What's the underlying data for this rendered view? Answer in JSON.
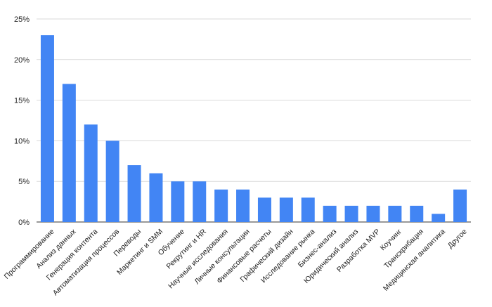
{
  "chart_data": {
    "type": "bar",
    "title": "",
    "xlabel": "",
    "ylabel": "",
    "ylim": [
      0,
      25
    ],
    "yticks": [
      "0%",
      "5%",
      "10%",
      "15%",
      "20%",
      "25%"
    ],
    "ytick_values": [
      0,
      5,
      10,
      15,
      20,
      25
    ],
    "grid": true,
    "legend": "none",
    "bar_color": "#4285F4",
    "categories": [
      "Программирование",
      "Анализ данных",
      "Генерация контента",
      "Автоматизация процессов",
      "Переводы",
      "Маркетинг и SMM",
      "Обучение",
      "Рекрутинг и HR",
      "Научные исследования",
      "Личные консультации",
      "Финансовые расчеты",
      "Графический дизайн",
      "Исследование рынка",
      "Бизнес-анализ",
      "Юридический анализ",
      "Разработка MVP",
      "Коучинг",
      "Транскрибация",
      "Медицинская аналитика",
      "Другое"
    ],
    "values": [
      23,
      17,
      12,
      10,
      7,
      6,
      5,
      5,
      4,
      4,
      3,
      3,
      3,
      2,
      2,
      2,
      2,
      2,
      1,
      4
    ]
  }
}
